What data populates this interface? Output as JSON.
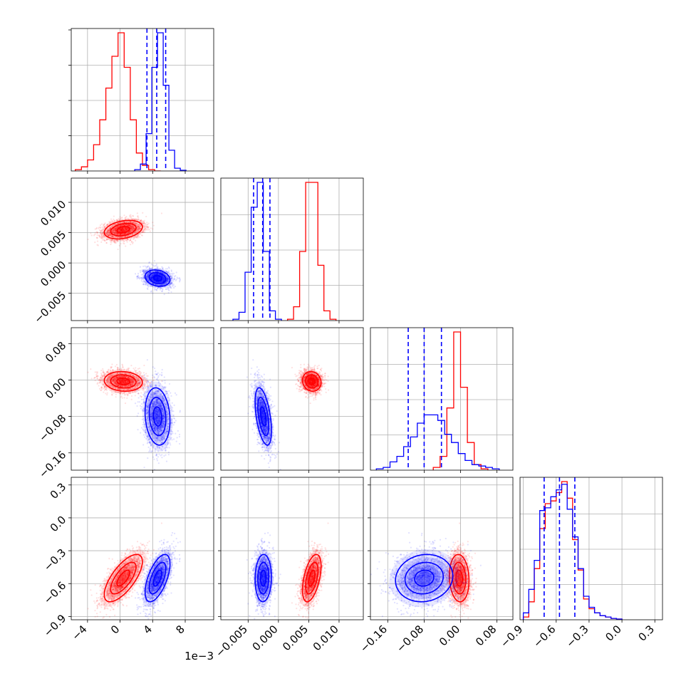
{
  "chart_data": {
    "type": "corner",
    "parameters": [
      {
        "range": [
          -6.0,
          11.5
        ],
        "ticks": [
          -4,
          0,
          4,
          8
        ],
        "tick_labels": [
          "−4",
          "0",
          "4",
          "8"
        ],
        "offset_label": "1e−3"
      },
      {
        "range": [
          -0.0095,
          0.014
        ],
        "ticks": [
          -0.005,
          0.0,
          0.005,
          0.01
        ],
        "tick_labels": [
          "−0.005",
          "0.000",
          "0.005",
          "0.010"
        ]
      },
      {
        "range": [
          -0.198,
          0.115
        ],
        "ticks": [
          -0.16,
          -0.08,
          0.0,
          0.08
        ],
        "tick_labels": [
          "−0.16",
          "−0.08",
          "0.00",
          "0.08"
        ]
      },
      {
        "range": [
          -0.93,
          0.37
        ],
        "ticks": [
          -0.9,
          -0.6,
          -0.3,
          0.0,
          0.3
        ],
        "tick_labels": [
          "−0.9",
          "−0.6",
          "−0.3",
          "0.0",
          "0.3"
        ]
      }
    ],
    "diagonal_scale": [
      1.0,
      1.0,
      1.0,
      1.0
    ],
    "series": [
      {
        "name": "",
        "color": "#ff0000",
        "mean": [
          0.4,
          0.0055,
          -0.003,
          -0.55
        ],
        "std": [
          1.3,
          0.00085,
          0.012,
          0.12
        ],
        "corr": [
          [
            1.0,
            0.3,
            -0.1,
            0.7
          ],
          [
            0.3,
            1.0,
            -0.1,
            0.5
          ],
          [
            -0.1,
            -0.1,
            1.0,
            -0.1
          ],
          [
            0.7,
            0.5,
            -0.1,
            1.0
          ]
        ],
        "histograms": [
          {
            "edges": [
              -5.5,
              -4.75,
              -4.0,
              -3.25,
              -2.5,
              -1.75,
              -1.0,
              -0.25,
              0.5,
              1.25,
              2.0,
              2.75,
              3.5,
              4.25,
              5.0
            ],
            "counts": [
              0.01,
              0.03,
              0.08,
              0.19,
              0.37,
              0.6,
              0.83,
              1.0,
              0.75,
              0.37,
              0.13,
              0.04,
              0.01,
              0.0
            ]
          },
          {
            "edges": [
              0.0015,
              0.0025,
              0.0035,
              0.0045,
              0.0055,
              0.0065,
              0.0075,
              0.0085,
              0.0095
            ],
            "counts": [
              0.01,
              0.1,
              0.5,
              1.0,
              1.0,
              0.4,
              0.07,
              0.01
            ]
          },
          {
            "edges": [
              -0.06,
              -0.045,
              -0.03,
              -0.015,
              0.0,
              0.015,
              0.03,
              0.045,
              0.06
            ],
            "counts": [
              0.02,
              0.1,
              0.45,
              1.0,
              0.6,
              0.2,
              0.04,
              0.01
            ]
          },
          {
            "edges": [
              -0.9,
              -0.85,
              -0.8,
              -0.75,
              -0.7,
              -0.65,
              -0.6,
              -0.55,
              -0.5,
              -0.45,
              -0.4,
              -0.35,
              -0.3,
              -0.25,
              -0.2,
              -0.15,
              -0.1,
              -0.05,
              0.0
            ],
            "counts": [
              0.02,
              0.13,
              0.37,
              0.66,
              0.84,
              0.86,
              0.92,
              1.0,
              0.88,
              0.58,
              0.36,
              0.15,
              0.08,
              0.05,
              0.03,
              0.02,
              0.01,
              0.005
            ]
          }
        ]
      },
      {
        "name": "",
        "color": "#0000ff",
        "mean": [
          4.6,
          -0.0025,
          -0.08,
          -0.55
        ],
        "std": [
          0.85,
          0.00075,
          0.035,
          0.12
        ],
        "corr": [
          [
            1.0,
            -0.2,
            -0.15,
            0.6
          ],
          [
            -0.2,
            1.0,
            -0.5,
            0.05
          ],
          [
            -0.15,
            -0.5,
            1.0,
            0.1
          ],
          [
            0.6,
            0.05,
            0.1,
            1.0
          ]
        ],
        "histograms": [
          {
            "edges": [
              1.8,
              2.5,
              3.2,
              3.9,
              4.6,
              5.3,
              6.0,
              6.7,
              7.4,
              8.1
            ],
            "counts": [
              0.01,
              0.05,
              0.27,
              0.75,
              1.0,
              0.62,
              0.15,
              0.02,
              0.005
            ]
          },
          {
            "edges": [
              -0.0075,
              -0.0065,
              -0.0055,
              -0.0045,
              -0.0035,
              -0.0025,
              -0.0015,
              -0.0005,
              0.0005
            ],
            "counts": [
              0.01,
              0.06,
              0.35,
              0.82,
              1.0,
              0.5,
              0.07,
              0.01
            ]
          },
          {
            "edges": [
              -0.185,
              -0.17,
              -0.155,
              -0.14,
              -0.125,
              -0.11,
              -0.095,
              -0.08,
              -0.065,
              -0.05,
              -0.035,
              -0.02,
              -0.005,
              0.01,
              0.025,
              0.04,
              0.055,
              0.07,
              0.085
            ],
            "counts": [
              0.01,
              0.02,
              0.06,
              0.1,
              0.17,
              0.24,
              0.34,
              0.4,
              0.4,
              0.36,
              0.26,
              0.2,
              0.12,
              0.07,
              0.04,
              0.03,
              0.02,
              0.01
            ]
          },
          {
            "edges": [
              -0.9,
              -0.85,
              -0.8,
              -0.75,
              -0.7,
              -0.65,
              -0.6,
              -0.55,
              -0.5,
              -0.45,
              -0.4,
              -0.35,
              -0.3,
              -0.25,
              -0.2,
              -0.15,
              -0.1,
              -0.05,
              0.0
            ],
            "counts": [
              0.05,
              0.22,
              0.43,
              0.79,
              0.81,
              0.89,
              0.94,
              0.98,
              0.8,
              0.6,
              0.37,
              0.17,
              0.09,
              0.05,
              0.03,
              0.02,
              0.01,
              0.005
            ]
          }
        ]
      }
    ],
    "quantile_lines": {
      "color": "#0000ff",
      "style": "dashed",
      "values": [
        [
          3.3,
          4.5,
          5.6
        ],
        [
          -0.0041,
          -0.0026,
          -0.0014
        ],
        [
          -0.115,
          -0.08,
          -0.042
        ],
        [
          -0.71,
          -0.57,
          -0.43
        ]
      ]
    },
    "contour_levels": [
      0.6,
      1.2,
      1.8
    ],
    "grid": true
  }
}
